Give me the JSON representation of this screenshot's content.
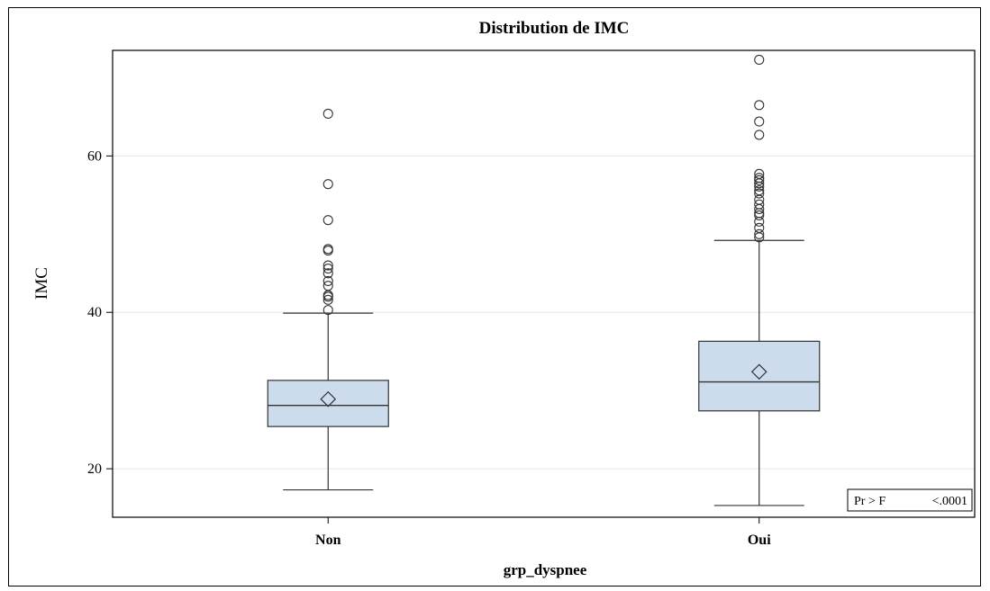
{
  "chart_data": {
    "type": "box",
    "title": "Distribution de IMC",
    "xlabel": "grp_dyspnee",
    "ylabel": "IMC",
    "categories": [
      "Non",
      "Oui"
    ],
    "ylim": [
      13.8,
      73.5
    ],
    "yticks": [
      20,
      40,
      60
    ],
    "grid": true,
    "inset": {
      "label": "Pr > F",
      "value": "<.0001",
      "placement": "bottom-right"
    },
    "boxes": [
      {
        "category": "Non",
        "whisker_low": 17.3,
        "q1": 25.4,
        "median": 28.1,
        "q3": 31.3,
        "whisker_high": 39.9,
        "mean": 28.9,
        "outliers": [
          40.3,
          41.6,
          42.0,
          42.2,
          43.4,
          44.0,
          45.0,
          45.6,
          46.0,
          47.9,
          48.1,
          51.8,
          56.4,
          65.4
        ]
      },
      {
        "category": "Oui",
        "whisker_low": 15.3,
        "q1": 27.4,
        "median": 31.1,
        "q3": 36.3,
        "whisker_high": 49.2,
        "mean": 32.4,
        "outliers": [
          49.6,
          50.0,
          50.8,
          51.6,
          52.4,
          52.7,
          53.2,
          53.8,
          54.4,
          55.2,
          55.6,
          56.1,
          56.5,
          56.9,
          57.2,
          57.7,
          62.7,
          64.4,
          66.5,
          72.3
        ]
      }
    ],
    "colors": {
      "box_fill": "#ccdcec",
      "line": "#333333",
      "grid": "#e6e6e6"
    }
  }
}
